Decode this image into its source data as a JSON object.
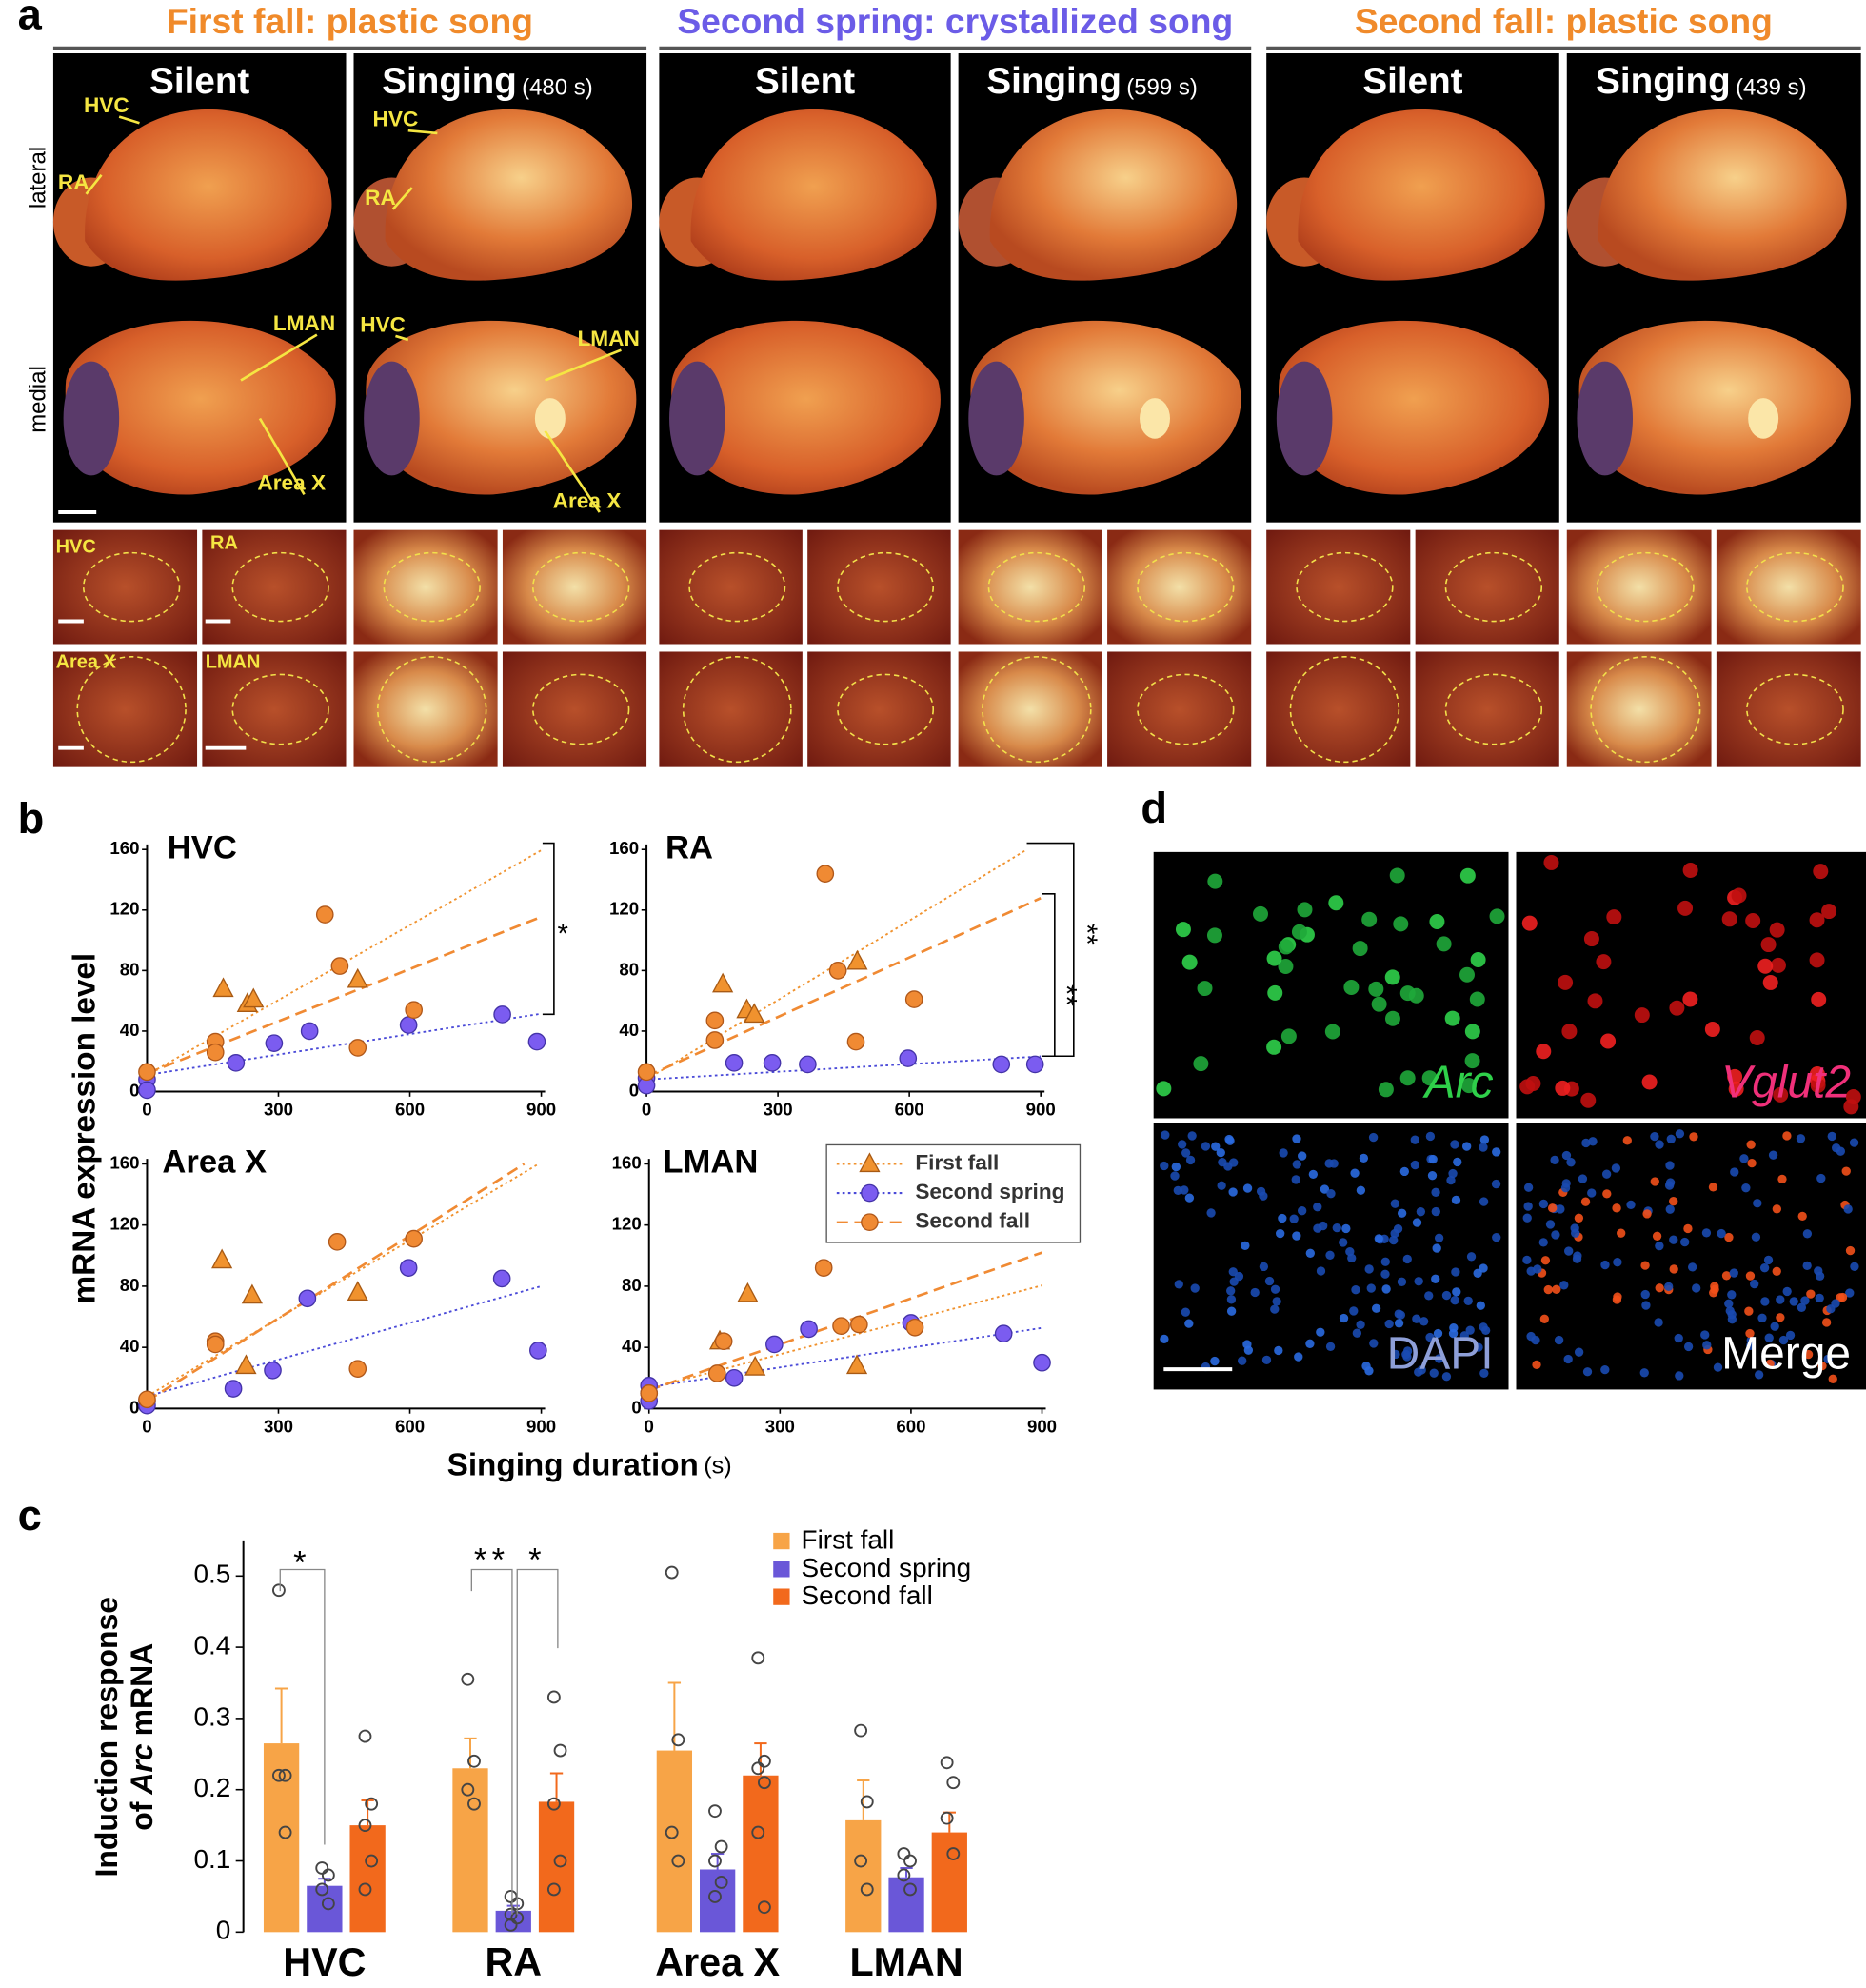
{
  "panel_labels": [
    "a",
    "b",
    "c",
    "d"
  ],
  "panel_a": {
    "groups": [
      {
        "title": "First fall: plastic song",
        "color": "#f08a2a",
        "columns": [
          {
            "label": "Silent"
          },
          {
            "label": "Singing",
            "duration": "(480 s)"
          }
        ]
      },
      {
        "title": "Second spring: crystallized song",
        "color": "#6b5ce7",
        "columns": [
          {
            "label": "Silent"
          },
          {
            "label": "Singing",
            "duration": "(599 s)"
          }
        ]
      },
      {
        "title": "Second fall: plastic song",
        "color": "#f08a2a",
        "columns": [
          {
            "label": "Silent"
          },
          {
            "label": "Singing",
            "duration": "(439 s)"
          }
        ]
      }
    ],
    "row_labels": [
      "lateral",
      "medial"
    ],
    "annotations": [
      "HVC",
      "RA",
      "LMAN",
      "Area X",
      "HVC",
      "RA",
      "HVC",
      "LMAN",
      "Area X"
    ],
    "inset_labels": [
      "HVC",
      "RA",
      "Area X",
      "LMAN"
    ]
  },
  "panel_b": {
    "ylabel": "mRNA expression level",
    "xlabel": "Singing duration",
    "xunit": "(s)"
  },
  "chart_data": [
    {
      "type": "scatter",
      "title": "HVC",
      "xlim": [
        0,
        900
      ],
      "xticks": [
        0,
        300,
        600,
        900
      ],
      "ylim": [
        0,
        160
      ],
      "yticks": [
        0,
        40,
        80,
        120,
        160
      ],
      "annotations": [
        "*"
      ],
      "series": [
        {
          "name": "First fall",
          "color": "#f0922e",
          "marker": "triangle",
          "line": "dotted",
          "x": [
            174,
            229,
            243,
            481
          ],
          "values": [
            68,
            58,
            61,
            74
          ],
          "fit": {
            "intercept": 11,
            "slope": 0.165
          }
        },
        {
          "name": "Second spring",
          "color": "#7b5cf0",
          "marker": "circle",
          "line": "dotted",
          "x": [
            0,
            0,
            203,
            290,
            371,
            597,
            811,
            890
          ],
          "values": [
            8,
            1,
            19,
            32,
            40,
            44,
            51,
            33
          ],
          "fit": {
            "intercept": 11,
            "slope": 0.045
          }
        },
        {
          "name": "Second fall",
          "color": "#f08a33",
          "marker": "circle",
          "line": "dashed",
          "x": [
            0,
            156,
            156,
            406,
            440,
            481,
            609
          ],
          "values": [
            13,
            33,
            26,
            117,
            83,
            29,
            54
          ],
          "fit": {
            "intercept": 12,
            "slope": 0.115
          }
        }
      ]
    },
    {
      "type": "scatter",
      "title": "RA",
      "xlim": [
        0,
        900
      ],
      "xticks": [
        0,
        300,
        600,
        900
      ],
      "ylim": [
        0,
        160
      ],
      "yticks": [
        0,
        40,
        80,
        120,
        160
      ],
      "annotations": [
        "**",
        "**"
      ],
      "series": [
        {
          "name": "First fall",
          "color": "#f0922e",
          "marker": "triangle",
          "line": "dotted",
          "x": [
            174,
            229,
            246,
            481
          ],
          "values": [
            71,
            54,
            51,
            86
          ],
          "fit": {
            "intercept": 8,
            "slope": 0.175
          }
        },
        {
          "name": "Second spring",
          "color": "#7b5cf0",
          "marker": "circle",
          "line": "dotted",
          "x": [
            0,
            0,
            200,
            287,
            368,
            597,
            810,
            887
          ],
          "values": [
            9,
            4,
            19,
            19,
            18,
            22,
            18,
            18
          ],
          "fit": {
            "intercept": 8,
            "slope": 0.017
          }
        },
        {
          "name": "Second fall",
          "color": "#f08a33",
          "marker": "circle",
          "line": "dashed",
          "x": [
            0,
            156,
            156,
            408,
            437,
            478,
            611
          ],
          "values": [
            13,
            47,
            34,
            144,
            80,
            33,
            61
          ],
          "fit": {
            "intercept": 10,
            "slope": 0.131
          }
        }
      ]
    },
    {
      "type": "scatter",
      "title": "Area X",
      "xlim": [
        0,
        900
      ],
      "xticks": [
        0,
        300,
        600,
        900
      ],
      "ylim": [
        0,
        160
      ],
      "yticks": [
        0,
        40,
        80,
        120,
        160
      ],
      "series": [
        {
          "name": "First fall",
          "color": "#f0922e",
          "marker": "triangle",
          "line": "dotted",
          "x": [
            171,
            240,
            226,
            481
          ],
          "values": [
            97,
            74,
            28,
            76
          ],
          "fit": {
            "intercept": 8,
            "slope": 0.17
          }
        },
        {
          "name": "Second spring",
          "color": "#7b5cf0",
          "marker": "circle",
          "line": "dotted",
          "x": [
            0,
            0,
            197,
            287,
            366,
            597,
            810,
            893
          ],
          "values": [
            5,
            2,
            13,
            25,
            72,
            92,
            85,
            38
          ],
          "fit": {
            "intercept": 8,
            "slope": 0.08
          }
        },
        {
          "name": "Second fall",
          "color": "#f08a33",
          "marker": "circle",
          "line": "dashed",
          "x": [
            0,
            156,
            156,
            434,
            481,
            609
          ],
          "values": [
            6,
            44,
            42,
            109,
            26,
            111
          ],
          "fit": {
            "intercept": 5,
            "slope": 0.18
          }
        }
      ]
    },
    {
      "type": "scatter",
      "title": "LMAN",
      "xlim": [
        0,
        900
      ],
      "xticks": [
        0,
        300,
        600,
        900
      ],
      "ylim": [
        0,
        160
      ],
      "yticks": [
        0,
        40,
        80,
        120,
        160
      ],
      "legend": "upper right",
      "series": [
        {
          "name": "First fall",
          "color": "#f0922e",
          "marker": "triangle",
          "line": "dotted",
          "x": [
            162,
            226,
            243,
            476
          ],
          "values": [
            44,
            75,
            27,
            28
          ],
          "fit": {
            "intercept": 13,
            "slope": 0.075
          }
        },
        {
          "name": "Second spring",
          "color": "#7b5cf0",
          "marker": "circle",
          "line": "dotted",
          "x": [
            0,
            0,
            0,
            195,
            287,
            366,
            600,
            812,
            900
          ],
          "values": [
            15,
            10,
            5,
            20,
            42,
            52,
            56,
            49,
            30
          ],
          "fit": {
            "intercept": 14,
            "slope": 0.043
          }
        },
        {
          "name": "Second fall",
          "color": "#f08a33",
          "marker": "circle",
          "line": "dashed",
          "x": [
            0,
            156,
            171,
            400,
            440,
            481,
            609
          ],
          "values": [
            10,
            23,
            44,
            92,
            54,
            55,
            53
          ],
          "fit": {
            "intercept": 12,
            "slope": 0.1
          }
        }
      ]
    },
    {
      "type": "bar",
      "categories": [
        "HVC",
        "RA",
        "Area X",
        "LMAN"
      ],
      "ylim": [
        0,
        0.55
      ],
      "yticks": [
        0,
        0.1,
        0.2,
        0.3,
        0.4,
        0.5
      ],
      "legend": "upper right",
      "ylabel": {
        "line1": "Induction response",
        "pre": "of",
        "gene": "Arc",
        "post": "mRNA"
      },
      "annotations": [
        "*",
        "**",
        "*"
      ],
      "series": [
        {
          "name": "First fall",
          "color": "#f7a447",
          "values": [
            0.265,
            0.23,
            0.255,
            0.157
          ],
          "errors": [
            0.077,
            0.042,
            0.095,
            0.056
          ],
          "points": [
            [
              0.48,
              0.22,
              0.22,
              0.14
            ],
            [
              0.355,
              0.24,
              0.2,
              0.18
            ],
            [
              0.505,
              0.27,
              0.14,
              0.1
            ],
            [
              0.283,
              0.183,
              0.1,
              0.06
            ]
          ]
        },
        {
          "name": "Second spring",
          "color": "#6a57d8",
          "values": [
            0.065,
            0.03,
            0.088,
            0.077
          ],
          "errors": [
            0.01,
            0.007,
            0.022,
            0.013
          ],
          "points": [
            [
              0.09,
              0.08,
              0.06,
              0.04
            ],
            [
              0.05,
              0.04,
              0.025,
              0.02,
              0.01
            ],
            [
              0.17,
              0.12,
              0.1,
              0.07,
              0.05
            ],
            [
              0.11,
              0.1,
              0.08,
              0.06
            ]
          ]
        },
        {
          "name": "Second fall",
          "color": "#f2691c",
          "values": [
            0.15,
            0.183,
            0.22,
            0.14
          ],
          "errors": [
            0.035,
            0.04,
            0.045,
            0.028
          ],
          "points": [
            [
              0.275,
              0.18,
              0.15,
              0.1,
              0.06
            ],
            [
              0.33,
              0.255,
              0.18,
              0.1,
              0.06
            ],
            [
              0.385,
              0.24,
              0.23,
              0.21,
              0.14,
              0.035
            ],
            [
              0.238,
              0.21,
              0.16,
              0.11
            ]
          ]
        }
      ]
    }
  ],
  "panel_d": {
    "labels": [
      "Arc",
      "Vglut2",
      "DAPI",
      "Merge"
    ],
    "colors": [
      "#2fd04a",
      "#f0307a",
      "#8e9fd8",
      "#ffffff"
    ]
  }
}
